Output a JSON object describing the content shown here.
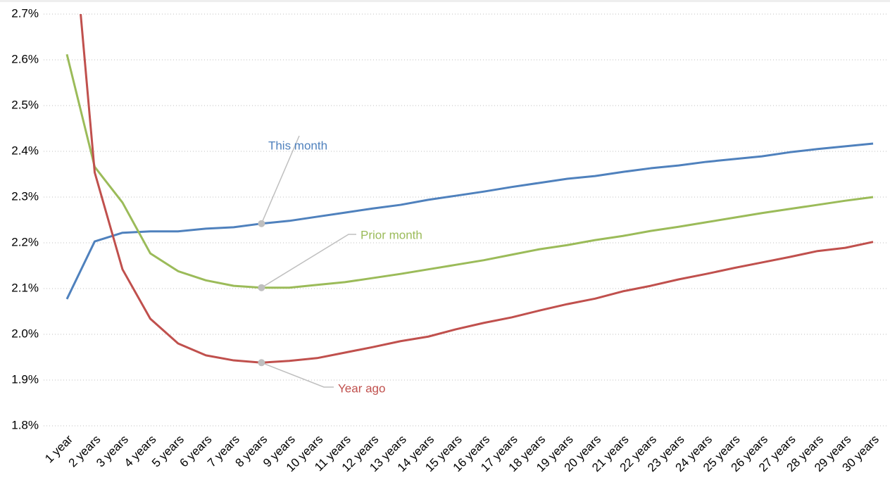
{
  "chart_data": {
    "type": "line",
    "categories": [
      "1 year",
      "2 years",
      "3 years",
      "4 years",
      "5 years",
      "6 years",
      "7 years",
      "8 years",
      "9 years",
      "10 years",
      "11 years",
      "12 years",
      "13 years",
      "14 years",
      "15 years",
      "16 years",
      "17 years",
      "18 years",
      "19 years",
      "20 years",
      "21 years",
      "22 years",
      "23 years",
      "24 years",
      "25 years",
      "26 years",
      "27 years",
      "28 years",
      "29 years",
      "30 years"
    ],
    "series": [
      {
        "name": "This month",
        "color": "#4f81bd",
        "values": [
          2.077,
          2.203,
          2.222,
          2.225,
          2.225,
          2.231,
          2.234,
          2.242,
          2.248,
          2.257,
          2.266,
          2.275,
          2.283,
          2.294,
          2.303,
          2.312,
          2.322,
          2.331,
          2.34,
          2.346,
          2.355,
          2.363,
          2.369,
          2.377,
          2.383,
          2.389,
          2.398,
          2.405,
          2.411,
          2.417
        ]
      },
      {
        "name": "Prior month",
        "color": "#9bbb59",
        "values": [
          2.612,
          2.366,
          2.288,
          2.177,
          2.138,
          2.118,
          2.106,
          2.102,
          2.102,
          2.108,
          2.114,
          2.123,
          2.132,
          2.142,
          2.152,
          2.162,
          2.174,
          2.186,
          2.195,
          2.206,
          2.215,
          2.226,
          2.235,
          2.245,
          2.255,
          2.265,
          2.274,
          2.283,
          2.292,
          2.3
        ]
      },
      {
        "name": "Year ago",
        "color": "#c0504d",
        "values": [
          3.04,
          2.354,
          2.142,
          2.034,
          1.98,
          1.954,
          1.943,
          1.938,
          1.942,
          1.948,
          1.96,
          1.972,
          1.985,
          1.995,
          2.011,
          2.025,
          2.037,
          2.052,
          2.066,
          2.078,
          2.094,
          2.106,
          2.12,
          2.132,
          2.145,
          2.157,
          2.169,
          2.182,
          2.189,
          2.202
        ]
      }
    ],
    "ylim": [
      1.8,
      2.7
    ],
    "yticks": [
      {
        "value": 1.8,
        "label": "1.8%"
      },
      {
        "value": 1.9,
        "label": "1.9%"
      },
      {
        "value": 2.0,
        "label": "2.0%"
      },
      {
        "value": 2.1,
        "label": "2.1%"
      },
      {
        "value": 2.2,
        "label": "2.2%"
      },
      {
        "value": 2.3,
        "label": "2.3%"
      },
      {
        "value": 2.4,
        "label": "2.4%"
      },
      {
        "value": 2.5,
        "label": "2.5%"
      },
      {
        "value": 2.6,
        "label": "2.6%"
      },
      {
        "value": 2.7,
        "label": "2.7%"
      }
    ],
    "grid": true
  }
}
